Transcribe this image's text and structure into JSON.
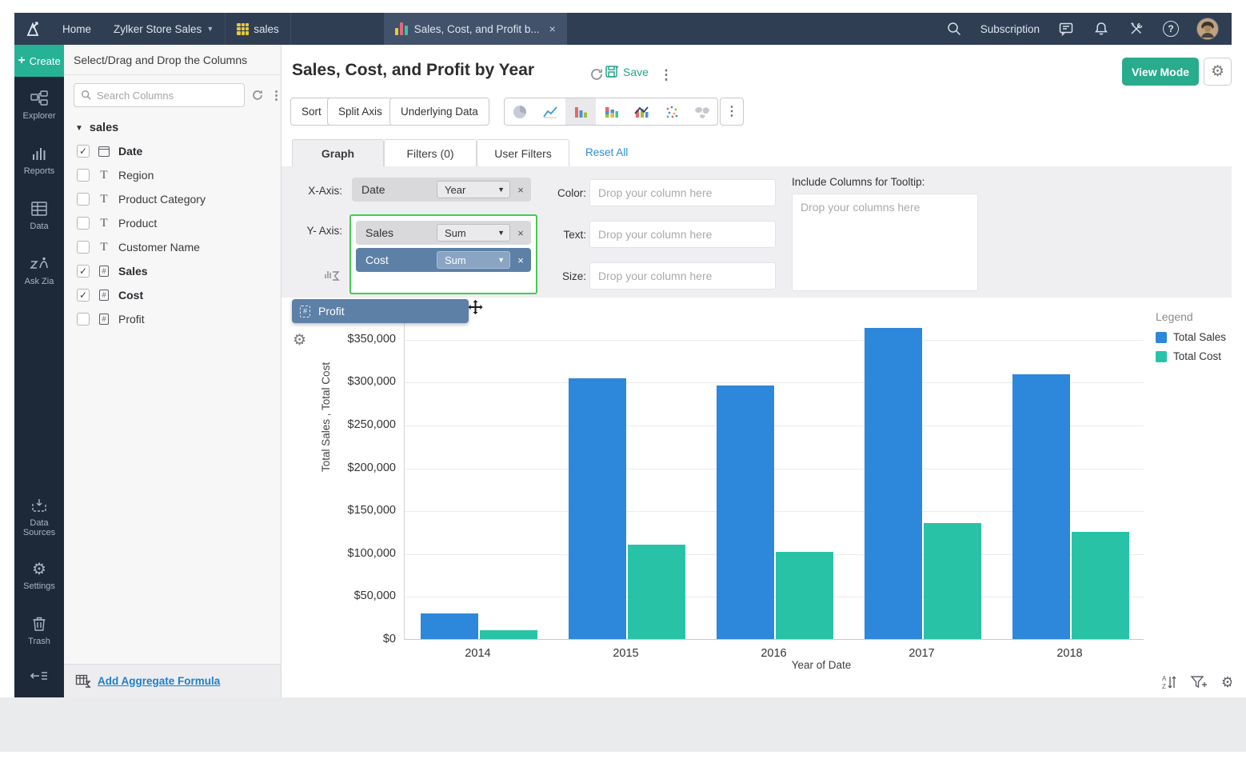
{
  "topbar": {
    "home_label": "Home",
    "workspace_label": "Zylker Store Sales",
    "table_tab_label": "sales",
    "report_tab_label": "Sales, Cost, and Profit b...",
    "report_tab_close": "×",
    "subscription_label": "Subscription"
  },
  "sidebar": {
    "create_label": "Create",
    "items": [
      {
        "label": "Explorer"
      },
      {
        "label": "Reports"
      },
      {
        "label": "Data"
      },
      {
        "label": "Ask Zia"
      }
    ],
    "items_bottom": [
      {
        "label": "Data Sources"
      },
      {
        "label": "Settings"
      },
      {
        "label": "Trash"
      }
    ]
  },
  "columns_panel": {
    "title": "Select/Drag and Drop the Columns",
    "search_placeholder": "Search Columns",
    "table_name": "sales",
    "columns": [
      {
        "label": "Date",
        "type": "date",
        "checked": true
      },
      {
        "label": "Region",
        "type": "text",
        "checked": false
      },
      {
        "label": "Product Category",
        "type": "text",
        "checked": false
      },
      {
        "label": "Product",
        "type": "text",
        "checked": false
      },
      {
        "label": "Customer Name",
        "type": "text",
        "checked": false
      },
      {
        "label": "Sales",
        "type": "number",
        "checked": true
      },
      {
        "label": "Cost",
        "type": "number",
        "checked": true
      },
      {
        "label": "Profit",
        "type": "number",
        "checked": false
      }
    ],
    "add_formula_label": "Add Aggregate Formula"
  },
  "header": {
    "title": "Sales, Cost, and Profit by Year",
    "save_label": "Save",
    "view_mode_label": "View Mode"
  },
  "toolbar": {
    "sort_label": "Sort",
    "split_axis_label": "Split Axis",
    "underlying_data_label": "Underlying Data"
  },
  "tabs": {
    "graph": "Graph",
    "filters": "Filters  (0)",
    "user_filters": "User Filters",
    "reset_all": "Reset All"
  },
  "config": {
    "x_axis_label": "X-Axis:",
    "y_axis_label": "Y- Axis:",
    "x_chip": {
      "field": "Date",
      "agg": "Year",
      "chevron": "∨",
      "close": "×"
    },
    "y_chips": [
      {
        "field": "Sales",
        "agg": "Sum",
        "chevron": "∨",
        "close": "×",
        "highlighted": false
      },
      {
        "field": "Cost",
        "agg": "Sum",
        "chevron": "∨",
        "close": "×",
        "highlighted": true
      }
    ],
    "drag_chip_label": "Profit",
    "color_label": "Color:",
    "text_label": "Text:",
    "size_label": "Size:",
    "drop_column_placeholder": "Drop your column here",
    "tooltip_section_label": "Include Columns for Tooltip:",
    "tooltip_placeholder": "Drop your columns here"
  },
  "chart_data": {
    "type": "bar",
    "title": "Sales, Cost, and Profit by Year",
    "categories": [
      "2014",
      "2015",
      "2016",
      "2017",
      "2018"
    ],
    "series": [
      {
        "name": "Total Sales",
        "color": "#2d87da",
        "values": [
          30000,
          304000,
          296000,
          363000,
          309000
        ]
      },
      {
        "name": "Total Cost",
        "color": "#28c3a7",
        "values": [
          10000,
          110000,
          102000,
          135000,
          125000
        ]
      }
    ],
    "xlabel": "Year of Date",
    "ylabel": "Total Sales , Total Cost",
    "ylim": [
      0,
      375000
    ],
    "ytick_interval": 50000,
    "ytick_max_label": 350000,
    "ytick_prefix": "$",
    "grid": true,
    "legend_title": "Legend",
    "legend_position": "right-top"
  },
  "colors": {
    "topbar": "#2f3e53",
    "rail": "#1d2939",
    "accent_green": "#26b295",
    "chip_blue": "#5d80a7",
    "drop_highlight_border": "#45ca51",
    "link_blue": "#1e7fc9"
  }
}
